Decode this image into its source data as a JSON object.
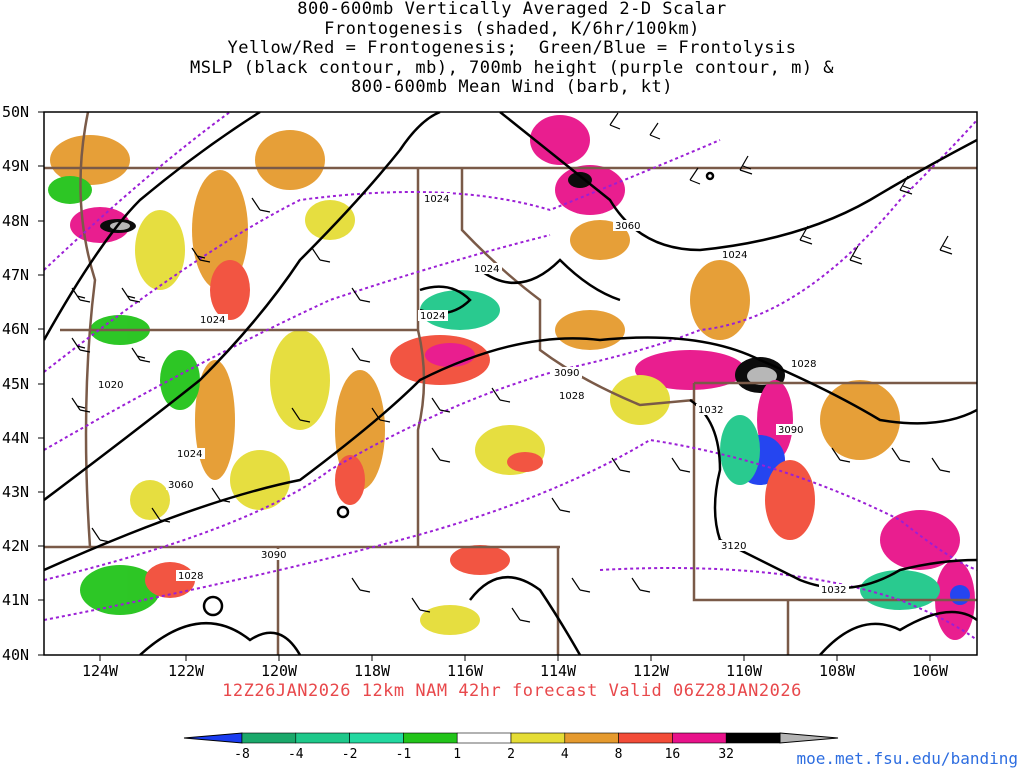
{
  "title": {
    "line1": "800-600mb Vertically Averaged 2-D Scalar",
    "line2": "Frontogenesis (shaded, K/6hr/100km)",
    "line3": "Yellow/Red = Frontogenesis;  Green/Blue = Frontolysis",
    "line4": "MSLP (black contour, mb), 700mb height (purple contour, m) &",
    "line5": "800-600mb Mean Wind (barb, kt)"
  },
  "forecast_line": "12Z26JAN2026 12km NAM 42hr forecast Valid 06Z28JAN2026",
  "credit": "moe.met.fsu.edu/banding",
  "axes": {
    "lat_labels": [
      "50N",
      "49N",
      "48N",
      "47N",
      "46N",
      "45N",
      "44N",
      "43N",
      "42N",
      "41N",
      "40N"
    ],
    "lon_labels": [
      "124W",
      "122W",
      "120W",
      "118W",
      "116W",
      "114W",
      "112W",
      "110W",
      "108W",
      "106W"
    ]
  },
  "legend": {
    "bins": [
      {
        "color": "#1a3cf0"
      },
      {
        "color": "#1aa86a"
      },
      {
        "color": "#1ec88a"
      },
      {
        "color": "#23d8a0"
      },
      {
        "color": "#22c41a"
      },
      {
        "color": "#ffffff"
      },
      {
        "color": "#e5dd36"
      },
      {
        "color": "#e59a2e"
      },
      {
        "color": "#f24c38"
      },
      {
        "color": "#e8128a"
      },
      {
        "color": "#000000"
      },
      {
        "color": "#b4b4b4"
      }
    ],
    "labels": [
      "-8",
      "-4",
      "-2",
      "-1",
      "1",
      "2",
      "4",
      "8",
      "16",
      "32"
    ]
  },
  "contour_labels": {
    "mslp": [
      "1024",
      "1024",
      "1024",
      "1024",
      "1020",
      "1024",
      "1028",
      "1028",
      "1032",
      "1028",
      "1032",
      "1024"
    ],
    "height": [
      "3060",
      "3090",
      "3090",
      "3060",
      "3120",
      "3090"
    ]
  },
  "colors": {
    "mslp_contour": "#000000",
    "height_contour": "#9b1fd6",
    "borders": "#7a5a48",
    "barb": "#000000"
  }
}
